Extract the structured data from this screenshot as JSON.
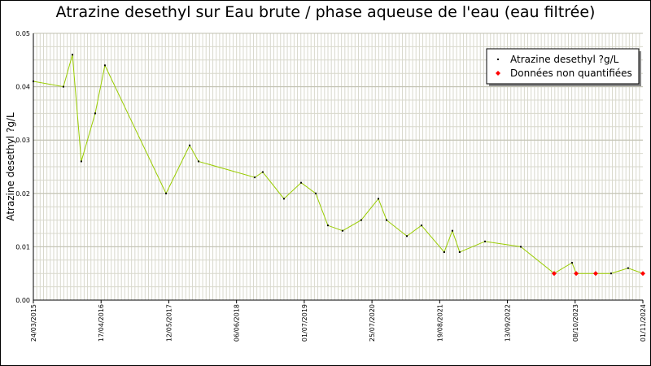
{
  "chart_data": {
    "type": "line",
    "title": "Atrazine desethyl sur Eau brute / phase aqueuse de l'eau (eau filtrée)",
    "y_label": "Atrazine desethyl ?g/L",
    "x": [
      "24/03/2015",
      "13/09/2015",
      "04/11/2015",
      "25/12/2015",
      "14/03/2016",
      "09/05/2016",
      "26/04/2017",
      "09/09/2017",
      "30/10/2017",
      "19/09/2018",
      "04/11/2018",
      "06/03/2019",
      "13/06/2019",
      "05/09/2019",
      "14/11/2019",
      "07/02/2020",
      "24/05/2020",
      "31/08/2020",
      "17/10/2020",
      "11/02/2021",
      "06/05/2021",
      "14/09/2021",
      "31/10/2021",
      "12/12/2021",
      "07/05/2022",
      "29/11/2022",
      "09/06/2023",
      "20/09/2023",
      "14/10/2023",
      "03/02/2024",
      "02/05/2024",
      "08/08/2024",
      "01/11/2024"
    ],
    "series": [
      {
        "name": "Atrazine desethyl ?g/L",
        "color": "#99cc00",
        "marker_color": "#000000",
        "values": [
          0.041,
          0.04,
          0.046,
          0.026,
          0.035,
          0.044,
          0.02,
          0.029,
          0.026,
          0.023,
          0.024,
          0.019,
          0.022,
          0.02,
          0.014,
          0.013,
          0.015,
          0.019,
          0.015,
          0.012,
          0.014,
          0.009,
          0.013,
          0.009,
          0.011,
          0.01,
          0.005,
          0.007,
          0.005,
          0.005,
          0.005,
          0.006,
          0.005
        ]
      },
      {
        "name": "Données non quantifiées",
        "color": "#ff0000",
        "values": [
          null,
          null,
          null,
          null,
          null,
          null,
          null,
          null,
          null,
          null,
          null,
          null,
          null,
          null,
          null,
          null,
          null,
          null,
          null,
          null,
          null,
          null,
          null,
          null,
          null,
          null,
          0.005,
          null,
          0.005,
          0.005,
          null,
          null,
          0.005
        ]
      }
    ],
    "xlim": [
      "24/03/2015",
      "01/11/2024"
    ],
    "xticks": [
      "24/03/2015",
      "17/04/2016",
      "12/05/2017",
      "06/06/2018",
      "01/07/2019",
      "25/07/2020",
      "19/08/2021",
      "13/09/2022",
      "08/10/2023",
      "01/11/2024"
    ],
    "ylim": [
      0,
      0.05
    ],
    "yticks": [
      {
        "value": 0,
        "label": "0.00"
      },
      0.01,
      0.02,
      0.03,
      0.04,
      0.05
    ],
    "grid": true,
    "legend": "upper right"
  }
}
